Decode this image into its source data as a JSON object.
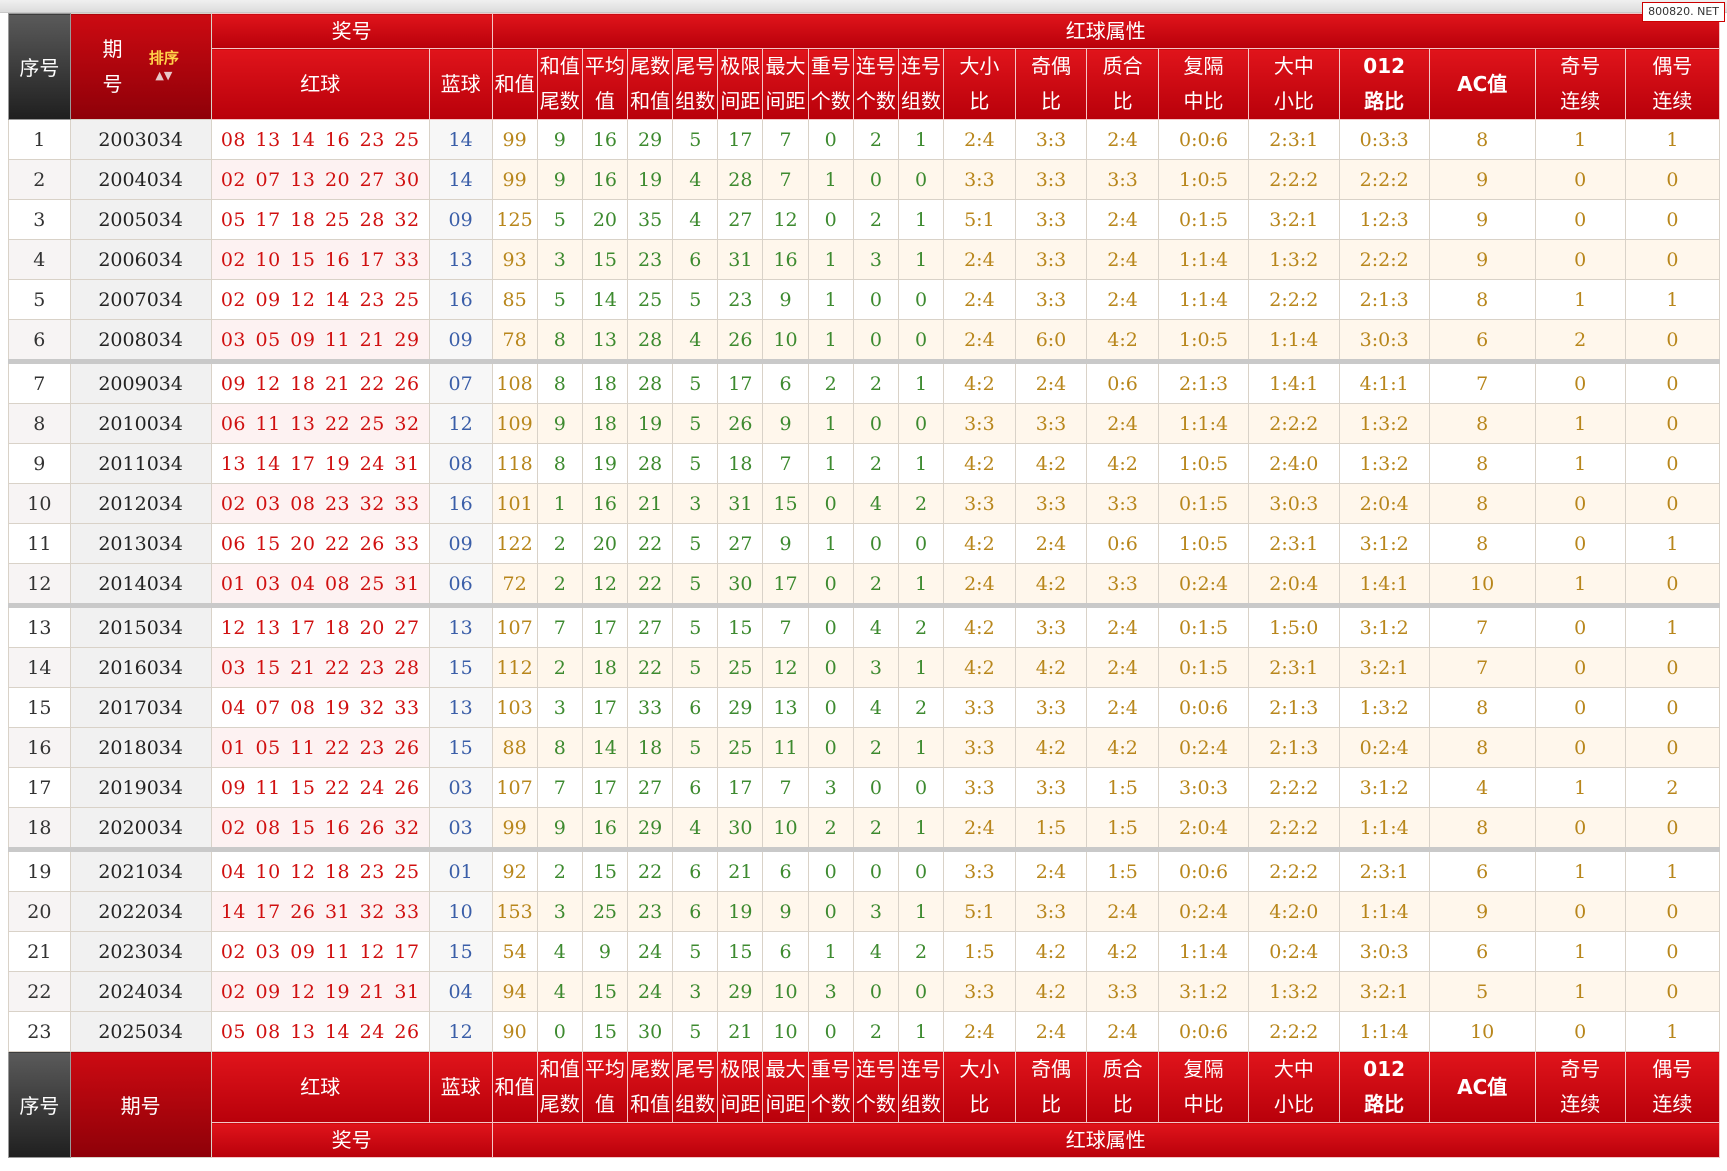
{
  "watermark": "800820. NET",
  "header": {
    "seq": "序号",
    "period_top": "期",
    "period_bottom": "号",
    "period_footer": "期号",
    "sort": "排序",
    "prize": "奖号",
    "red_attr": "红球属性",
    "red": "红球",
    "blue": "蓝球",
    "cols": [
      [
        "和值",
        ""
      ],
      [
        "和值",
        "尾数"
      ],
      [
        "平均",
        "值"
      ],
      [
        "尾数",
        "和值"
      ],
      [
        "尾号",
        "组数"
      ],
      [
        "极限",
        "间距"
      ],
      [
        "最大",
        "间距"
      ],
      [
        "重号",
        "个数"
      ],
      [
        "连号",
        "个数"
      ],
      [
        "连号",
        "组数"
      ],
      [
        "大小",
        "比"
      ],
      [
        "奇偶",
        "比"
      ],
      [
        "质合",
        "比"
      ],
      [
        "复隔",
        "中比"
      ],
      [
        "大中",
        "小比"
      ],
      [
        "012",
        "路比"
      ],
      [
        "AC值",
        ""
      ],
      [
        "奇号",
        "连续"
      ],
      [
        "偶号",
        "连续"
      ]
    ]
  },
  "rows": [
    {
      "i": "1",
      "p": "2003034",
      "r": "08 13 14 16 23 25",
      "b": "14",
      "v": [
        "99",
        "9",
        "16",
        "29",
        "5",
        "17",
        "7",
        "0",
        "2",
        "1",
        "2:4",
        "3:3",
        "2:4",
        "0:0:6",
        "2:3:1",
        "0:3:3",
        "8",
        "1",
        "1"
      ]
    },
    {
      "i": "2",
      "p": "2004034",
      "r": "02 07 13 20 27 30",
      "b": "14",
      "v": [
        "99",
        "9",
        "16",
        "19",
        "4",
        "28",
        "7",
        "1",
        "0",
        "0",
        "3:3",
        "3:3",
        "3:3",
        "1:0:5",
        "2:2:2",
        "2:2:2",
        "9",
        "0",
        "0"
      ]
    },
    {
      "i": "3",
      "p": "2005034",
      "r": "05 17 18 25 28 32",
      "b": "09",
      "v": [
        "125",
        "5",
        "20",
        "35",
        "4",
        "27",
        "12",
        "0",
        "2",
        "1",
        "5:1",
        "3:3",
        "2:4",
        "0:1:5",
        "3:2:1",
        "1:2:3",
        "9",
        "0",
        "0"
      ]
    },
    {
      "i": "4",
      "p": "2006034",
      "r": "02 10 15 16 17 33",
      "b": "13",
      "v": [
        "93",
        "3",
        "15",
        "23",
        "6",
        "31",
        "16",
        "1",
        "3",
        "1",
        "2:4",
        "3:3",
        "2:4",
        "1:1:4",
        "1:3:2",
        "2:2:2",
        "9",
        "0",
        "0"
      ]
    },
    {
      "i": "5",
      "p": "2007034",
      "r": "02 09 12 14 23 25",
      "b": "16",
      "v": [
        "85",
        "5",
        "14",
        "25",
        "5",
        "23",
        "9",
        "1",
        "0",
        "0",
        "2:4",
        "3:3",
        "2:4",
        "1:1:4",
        "2:2:2",
        "2:1:3",
        "8",
        "1",
        "1"
      ]
    },
    {
      "i": "6",
      "p": "2008034",
      "r": "03 05 09 11 21 29",
      "b": "09",
      "v": [
        "78",
        "8",
        "13",
        "28",
        "4",
        "26",
        "10",
        "1",
        "0",
        "0",
        "2:4",
        "6:0",
        "4:2",
        "1:0:5",
        "1:1:4",
        "3:0:3",
        "6",
        "2",
        "0"
      ]
    },
    {
      "i": "7",
      "p": "2009034",
      "r": "09 12 18 21 22 26",
      "b": "07",
      "v": [
        "108",
        "8",
        "18",
        "28",
        "5",
        "17",
        "6",
        "2",
        "2",
        "1",
        "4:2",
        "2:4",
        "0:6",
        "2:1:3",
        "1:4:1",
        "4:1:1",
        "7",
        "0",
        "0"
      ]
    },
    {
      "i": "8",
      "p": "2010034",
      "r": "06 11 13 22 25 32",
      "b": "12",
      "v": [
        "109",
        "9",
        "18",
        "19",
        "5",
        "26",
        "9",
        "1",
        "0",
        "0",
        "3:3",
        "3:3",
        "2:4",
        "1:1:4",
        "2:2:2",
        "1:3:2",
        "8",
        "1",
        "0"
      ]
    },
    {
      "i": "9",
      "p": "2011034",
      "r": "13 14 17 19 24 31",
      "b": "08",
      "v": [
        "118",
        "8",
        "19",
        "28",
        "5",
        "18",
        "7",
        "1",
        "2",
        "1",
        "4:2",
        "4:2",
        "4:2",
        "1:0:5",
        "2:4:0",
        "1:3:2",
        "8",
        "1",
        "0"
      ]
    },
    {
      "i": "10",
      "p": "2012034",
      "r": "02 03 08 23 32 33",
      "b": "16",
      "v": [
        "101",
        "1",
        "16",
        "21",
        "3",
        "31",
        "15",
        "0",
        "4",
        "2",
        "3:3",
        "3:3",
        "3:3",
        "0:1:5",
        "3:0:3",
        "2:0:4",
        "8",
        "0",
        "0"
      ]
    },
    {
      "i": "11",
      "p": "2013034",
      "r": "06 15 20 22 26 33",
      "b": "09",
      "v": [
        "122",
        "2",
        "20",
        "22",
        "5",
        "27",
        "9",
        "1",
        "0",
        "0",
        "4:2",
        "2:4",
        "0:6",
        "1:0:5",
        "2:3:1",
        "3:1:2",
        "8",
        "0",
        "1"
      ]
    },
    {
      "i": "12",
      "p": "2014034",
      "r": "01 03 04 08 25 31",
      "b": "06",
      "v": [
        "72",
        "2",
        "12",
        "22",
        "5",
        "30",
        "17",
        "0",
        "2",
        "1",
        "2:4",
        "4:2",
        "3:3",
        "0:2:4",
        "2:0:4",
        "1:4:1",
        "10",
        "1",
        "0"
      ]
    },
    {
      "i": "13",
      "p": "2015034",
      "r": "12 13 17 18 20 27",
      "b": "13",
      "v": [
        "107",
        "7",
        "17",
        "27",
        "5",
        "15",
        "7",
        "0",
        "4",
        "2",
        "4:2",
        "3:3",
        "2:4",
        "0:1:5",
        "1:5:0",
        "3:1:2",
        "7",
        "0",
        "1"
      ]
    },
    {
      "i": "14",
      "p": "2016034",
      "r": "03 15 21 22 23 28",
      "b": "15",
      "v": [
        "112",
        "2",
        "18",
        "22",
        "5",
        "25",
        "12",
        "0",
        "3",
        "1",
        "4:2",
        "4:2",
        "2:4",
        "0:1:5",
        "2:3:1",
        "3:2:1",
        "7",
        "0",
        "0"
      ]
    },
    {
      "i": "15",
      "p": "2017034",
      "r": "04 07 08 19 32 33",
      "b": "13",
      "v": [
        "103",
        "3",
        "17",
        "33",
        "6",
        "29",
        "13",
        "0",
        "4",
        "2",
        "3:3",
        "3:3",
        "2:4",
        "0:0:6",
        "2:1:3",
        "1:3:2",
        "8",
        "0",
        "0"
      ]
    },
    {
      "i": "16",
      "p": "2018034",
      "r": "01 05 11 22 23 26",
      "b": "15",
      "v": [
        "88",
        "8",
        "14",
        "18",
        "5",
        "25",
        "11",
        "0",
        "2",
        "1",
        "3:3",
        "4:2",
        "4:2",
        "0:2:4",
        "2:1:3",
        "0:2:4",
        "8",
        "0",
        "0"
      ]
    },
    {
      "i": "17",
      "p": "2019034",
      "r": "09 11 15 22 24 26",
      "b": "03",
      "v": [
        "107",
        "7",
        "17",
        "27",
        "6",
        "17",
        "7",
        "3",
        "0",
        "0",
        "3:3",
        "3:3",
        "1:5",
        "3:0:3",
        "2:2:2",
        "3:1:2",
        "4",
        "1",
        "2"
      ]
    },
    {
      "i": "18",
      "p": "2020034",
      "r": "02 08 15 16 26 32",
      "b": "03",
      "v": [
        "99",
        "9",
        "16",
        "29",
        "4",
        "30",
        "10",
        "2",
        "2",
        "1",
        "2:4",
        "1:5",
        "1:5",
        "2:0:4",
        "2:2:2",
        "1:1:4",
        "8",
        "0",
        "0"
      ]
    },
    {
      "i": "19",
      "p": "2021034",
      "r": "04 10 12 18 23 25",
      "b": "01",
      "v": [
        "92",
        "2",
        "15",
        "22",
        "6",
        "21",
        "6",
        "0",
        "0",
        "0",
        "3:3",
        "2:4",
        "1:5",
        "0:0:6",
        "2:2:2",
        "2:3:1",
        "6",
        "1",
        "1"
      ]
    },
    {
      "i": "20",
      "p": "2022034",
      "r": "14 17 26 31 32 33",
      "b": "10",
      "v": [
        "153",
        "3",
        "25",
        "23",
        "6",
        "19",
        "9",
        "0",
        "3",
        "1",
        "5:1",
        "3:3",
        "2:4",
        "0:2:4",
        "4:2:0",
        "1:1:4",
        "9",
        "0",
        "0"
      ]
    },
    {
      "i": "21",
      "p": "2023034",
      "r": "02 03 09 11 12 17",
      "b": "15",
      "v": [
        "54",
        "4",
        "9",
        "24",
        "5",
        "15",
        "6",
        "1",
        "4",
        "2",
        "1:5",
        "4:2",
        "4:2",
        "1:1:4",
        "0:2:4",
        "3:0:3",
        "6",
        "1",
        "0"
      ]
    },
    {
      "i": "22",
      "p": "2024034",
      "r": "02 09 12 19 21 31",
      "b": "04",
      "v": [
        "94",
        "4",
        "15",
        "24",
        "3",
        "29",
        "10",
        "3",
        "0",
        "0",
        "3:3",
        "4:2",
        "3:3",
        "3:1:2",
        "1:3:2",
        "3:2:1",
        "5",
        "1",
        "0"
      ]
    },
    {
      "i": "23",
      "p": "2025034",
      "r": "05 08 13 14 24 26",
      "b": "12",
      "v": [
        "90",
        "0",
        "15",
        "30",
        "5",
        "21",
        "10",
        "0",
        "2",
        "1",
        "2:4",
        "2:4",
        "2:4",
        "0:0:6",
        "2:2:2",
        "1:1:4",
        "10",
        "0",
        "1"
      ]
    }
  ]
}
